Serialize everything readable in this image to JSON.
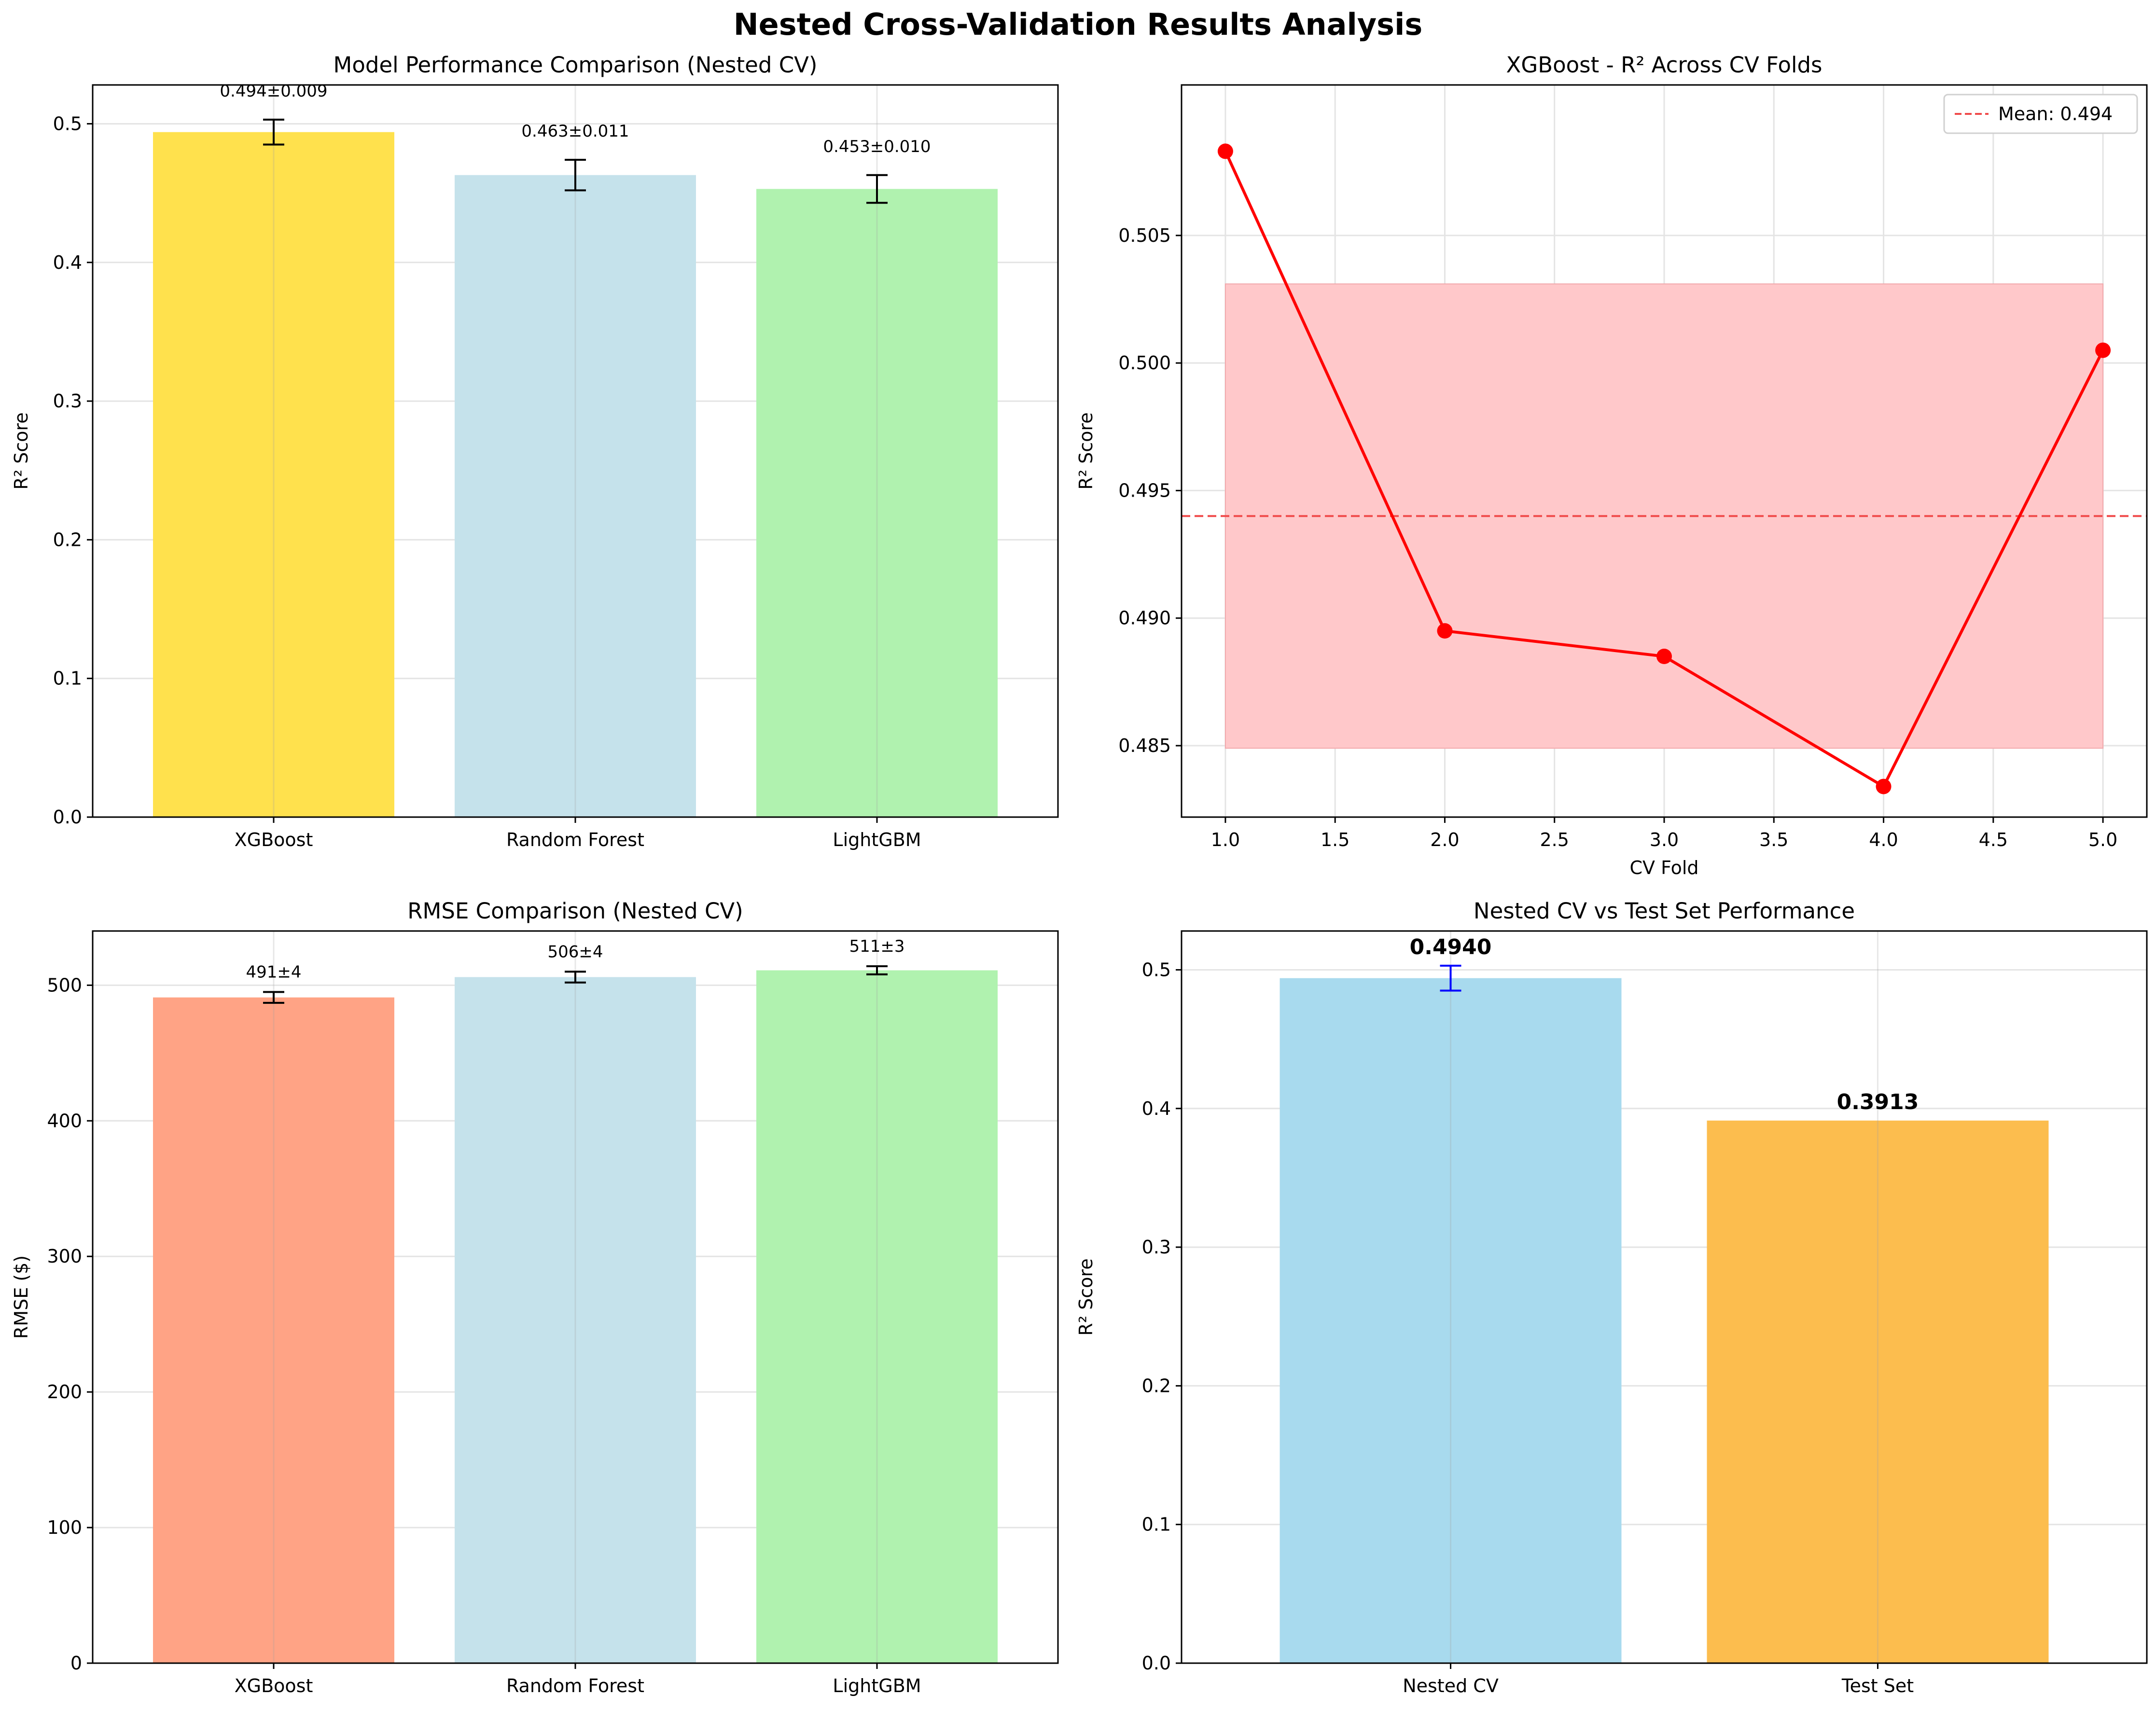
{
  "figure": {
    "title": "Nested Cross-Validation Results Analysis"
  },
  "chart_data": [
    {
      "type": "bar",
      "title": "Model Performance Comparison (Nested CV)",
      "xlabel": "",
      "ylabel": "R² Score",
      "categories": [
        "XGBoost",
        "Random Forest",
        "LightGBM"
      ],
      "values": [
        0.494,
        0.463,
        0.453
      ],
      "errors": [
        0.009,
        0.011,
        0.01
      ],
      "bar_labels": [
        "0.494±0.009",
        "0.463±0.011",
        "0.453±0.010"
      ],
      "colors": [
        "#FFE14D",
        "#C5E2EB",
        "#B0F2AF"
      ],
      "ylim": [
        0,
        0.528
      ],
      "yticks": [
        0.0,
        0.1,
        0.2,
        0.3,
        0.4,
        0.5
      ],
      "ytick_labels": [
        "0.0",
        "0.1",
        "0.2",
        "0.3",
        "0.4",
        "0.5"
      ],
      "grid": true
    },
    {
      "type": "line",
      "title": "XGBoost - R² Across CV Folds",
      "xlabel": "CV Fold",
      "ylabel": "R² Score",
      "x": [
        1,
        2,
        3,
        4,
        5
      ],
      "y": [
        0.5083,
        0.4895,
        0.4885,
        0.4834,
        0.5005
      ],
      "mean": 0.494,
      "band": [
        0.4849,
        0.5031
      ],
      "legend": [
        "Mean: 0.494"
      ],
      "legend_position": "top-right",
      "xlim": [
        0.8,
        5.2
      ],
      "ylim": [
        0.4822,
        0.5109
      ],
      "xticks": [
        1.0,
        1.5,
        2.0,
        2.5,
        3.0,
        3.5,
        4.0,
        4.5,
        5.0
      ],
      "xtick_labels": [
        "1.0",
        "1.5",
        "2.0",
        "2.5",
        "3.0",
        "3.5",
        "4.0",
        "4.5",
        "5.0"
      ],
      "yticks": [
        0.485,
        0.49,
        0.495,
        0.5,
        0.505
      ],
      "ytick_labels": [
        "0.485",
        "0.490",
        "0.495",
        "0.500",
        "0.505"
      ],
      "line_color": "#FF0000",
      "band_color": "#FFC8CA",
      "grid": true
    },
    {
      "type": "bar",
      "title": "RMSE Comparison (Nested CV)",
      "xlabel": "",
      "ylabel": "RMSE ($)",
      "categories": [
        "XGBoost",
        "Random Forest",
        "LightGBM"
      ],
      "values": [
        491,
        506,
        511
      ],
      "errors": [
        4,
        4,
        3
      ],
      "bar_labels": [
        "491±4",
        "506±4",
        "511±3"
      ],
      "colors": [
        "#FFA385",
        "#C5E2EB",
        "#B0F2AF"
      ],
      "ylim": [
        0,
        540
      ],
      "yticks": [
        0,
        100,
        200,
        300,
        400,
        500
      ],
      "ytick_labels": [
        "0",
        "100",
        "200",
        "300",
        "400",
        "500"
      ],
      "grid": true
    },
    {
      "type": "bar",
      "title": "Nested CV vs Test Set Performance",
      "xlabel": "",
      "ylabel": "R² Score",
      "categories": [
        "Nested CV",
        "Test Set"
      ],
      "values": [
        0.494,
        0.3913
      ],
      "errors": [
        0.009,
        null
      ],
      "bar_labels": [
        "0.4940",
        "0.3913"
      ],
      "colors": [
        "#A8DAEE",
        "#FCBD4E"
      ],
      "error_color": "#0000FF",
      "ylim": [
        0,
        0.528
      ],
      "yticks": [
        0.0,
        0.1,
        0.2,
        0.3,
        0.4,
        0.5
      ],
      "ytick_labels": [
        "0.0",
        "0.1",
        "0.2",
        "0.3",
        "0.4",
        "0.5"
      ],
      "grid": true
    }
  ]
}
